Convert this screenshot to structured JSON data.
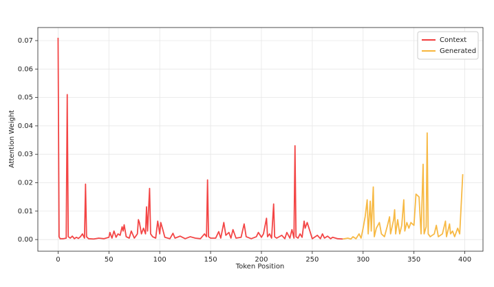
{
  "chart_data": {
    "type": "line",
    "x_label": "Token Position",
    "y_label": "Attention Weight",
    "xlim": [
      -19.9,
      417.9
    ],
    "ylim": [
      -0.0041,
      0.0746
    ],
    "xticks": [
      0,
      50,
      100,
      150,
      200,
      250,
      300,
      350,
      400
    ],
    "yticks": [
      {
        "value": 0,
        "label": "0.00"
      },
      {
        "value": 0.01,
        "label": "0.01"
      },
      {
        "value": 0.02,
        "label": "0.02"
      },
      {
        "value": 0.03,
        "label": "0.03"
      },
      {
        "value": 0.04,
        "label": "0.04"
      },
      {
        "value": 0.05,
        "label": "0.05"
      },
      {
        "value": 0.06,
        "label": "0.06"
      },
      {
        "value": 0.07,
        "label": "0.07"
      }
    ],
    "grid": true,
    "legend": "upper right",
    "series": [
      {
        "name": "Context",
        "color": "#f23b3b",
        "x": [
          0,
          1,
          2,
          5,
          8,
          9,
          10,
          12,
          14,
          16,
          18,
          20,
          22,
          24,
          26,
          27,
          28,
          30,
          35,
          40,
          45,
          50,
          51,
          53,
          55,
          57,
          59,
          61,
          63,
          64,
          65,
          67,
          70,
          72,
          75,
          78,
          79,
          80,
          82,
          84,
          86,
          87,
          88,
          90,
          91,
          93,
          96,
          98,
          100,
          101,
          103,
          105,
          110,
          113,
          115,
          120,
          125,
          130,
          135,
          140,
          144,
          146,
          147,
          148,
          150,
          155,
          158,
          160,
          163,
          165,
          168,
          170,
          172,
          175,
          180,
          183,
          185,
          190,
          195,
          197,
          200,
          202,
          205,
          206,
          208,
          210,
          212,
          213,
          215,
          220,
          223,
          225,
          228,
          230,
          232,
          233,
          234,
          236,
          238,
          240,
          242,
          243,
          245,
          250,
          255,
          258,
          260,
          262,
          265,
          268,
          270,
          275,
          280
        ],
        "values": [
          0.071,
          0.001,
          0.0003,
          0.0003,
          0.0005,
          0.051,
          0.001,
          0.0005,
          0.0012,
          0.0003,
          0.0008,
          0.0004,
          0.001,
          0.002,
          0.0005,
          0.0195,
          0.001,
          0.0003,
          0.0002,
          0.0005,
          0.0003,
          0.0008,
          0.0025,
          0.0005,
          0.003,
          0.0008,
          0.002,
          0.0015,
          0.0045,
          0.003,
          0.0052,
          0.001,
          0.0005,
          0.003,
          0.0005,
          0.002,
          0.007,
          0.006,
          0.002,
          0.004,
          0.002,
          0.0115,
          0.003,
          0.018,
          0.002,
          0.001,
          0.0005,
          0.0065,
          0.002,
          0.006,
          0.0035,
          0.0008,
          0.0003,
          0.0022,
          0.0005,
          0.0012,
          0.0003,
          0.001,
          0.0005,
          0.0003,
          0.002,
          0.001,
          0.021,
          0.001,
          0.0005,
          0.0005,
          0.0028,
          0.0005,
          0.006,
          0.0015,
          0.0025,
          0.0005,
          0.0035,
          0.0005,
          0.0008,
          0.0055,
          0.001,
          0.0003,
          0.001,
          0.0025,
          0.0008,
          0.002,
          0.0075,
          0.001,
          0.002,
          0.0005,
          0.0125,
          0.001,
          0.0005,
          0.0015,
          0.0003,
          0.0025,
          0.0005,
          0.0035,
          0.0005,
          0.033,
          0.001,
          0.0005,
          0.002,
          0.0008,
          0.0065,
          0.004,
          0.006,
          0.0003,
          0.0015,
          0.0003,
          0.002,
          0.0005,
          0.0012,
          0.0003,
          0.0008,
          0.0003,
          0.0002
        ]
      },
      {
        "name": "Generated",
        "color": "#f7b53a",
        "x": [
          280,
          285,
          288,
          290,
          293,
          296,
          298,
          300,
          302,
          304,
          305,
          307,
          308,
          310,
          311,
          313,
          316,
          318,
          321,
          324,
          326,
          327,
          330,
          331,
          332,
          334,
          336,
          338,
          340,
          341,
          343,
          345,
          347,
          350,
          352,
          355,
          357,
          359,
          360,
          362,
          363,
          364,
          366,
          370,
          372,
          374,
          378,
          381,
          382,
          385,
          386,
          388,
          390,
          393,
          395,
          398
        ],
        "values": [
          0.0002,
          0.0005,
          0.0002,
          0.001,
          0.0003,
          0.002,
          0.0005,
          0.004,
          0.008,
          0.014,
          0.002,
          0.0135,
          0.003,
          0.0185,
          0.001,
          0.004,
          0.006,
          0.002,
          0.001,
          0.005,
          0.008,
          0.002,
          0.007,
          0.0105,
          0.002,
          0.007,
          0.002,
          0.005,
          0.014,
          0.003,
          0.006,
          0.004,
          0.006,
          0.005,
          0.016,
          0.015,
          0.002,
          0.0265,
          0.002,
          0.0045,
          0.0375,
          0.002,
          0.001,
          0.002,
          0.005,
          0.001,
          0.002,
          0.0065,
          0.001,
          0.0055,
          0.002,
          0.003,
          0.001,
          0.004,
          0.002,
          0.023
        ]
      }
    ]
  }
}
